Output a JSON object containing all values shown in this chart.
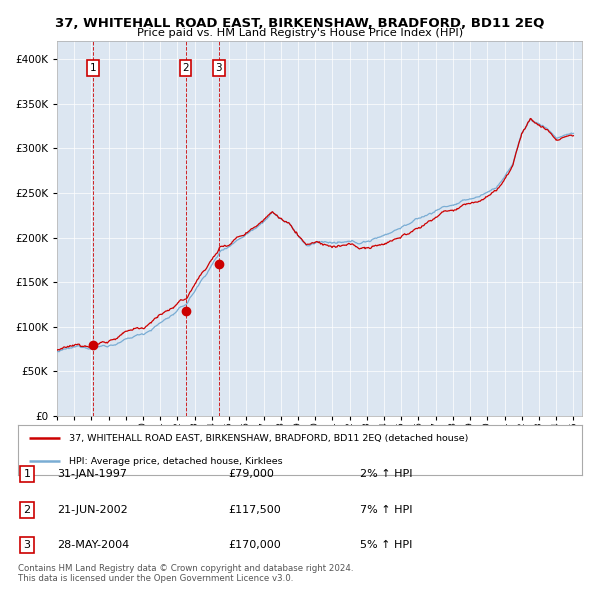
{
  "title": "37, WHITEHALL ROAD EAST, BIRKENSHAW, BRADFORD, BD11 2EQ",
  "subtitle": "Price paid vs. HM Land Registry's House Price Index (HPI)",
  "legend_line1": "37, WHITEHALL ROAD EAST, BIRKENSHAW, BRADFORD, BD11 2EQ (detached house)",
  "legend_line2": "HPI: Average price, detached house, Kirklees",
  "sale_points": [
    {
      "date_num": 1997.08,
      "price": 79000,
      "label": "1"
    },
    {
      "date_num": 2002.47,
      "price": 117500,
      "label": "2"
    },
    {
      "date_num": 2004.4,
      "price": 170000,
      "label": "3"
    }
  ],
  "vlines": [
    1997.08,
    2002.47,
    2004.4
  ],
  "table_rows": [
    [
      "1",
      "31-JAN-1997",
      "£79,000",
      "2% ↑ HPI"
    ],
    [
      "2",
      "21-JUN-2002",
      "£117,500",
      "7% ↑ HPI"
    ],
    [
      "3",
      "28-MAY-2004",
      "£170,000",
      "5% ↑ HPI"
    ]
  ],
  "footer": "Contains HM Land Registry data © Crown copyright and database right 2024.\nThis data is licensed under the Open Government Licence v3.0.",
  "red_color": "#cc0000",
  "blue_color": "#7aadd4",
  "plot_bg": "#dce6f1",
  "ylim": [
    0,
    420000
  ],
  "xlim_start": 1995.0,
  "xlim_end": 2025.5
}
